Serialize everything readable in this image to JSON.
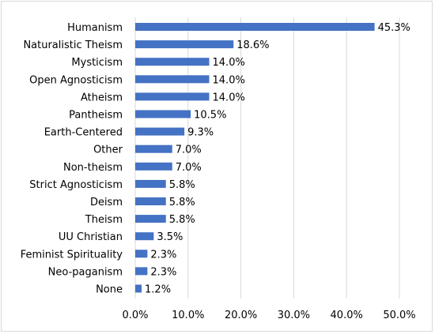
{
  "chart_data": {
    "type": "bar",
    "orientation": "horizontal",
    "categories": [
      "Humanism",
      "Naturalistic Theism",
      "Mysticism",
      "Open Agnosticism",
      "Atheism",
      "Pantheism",
      "Earth-Centered",
      "Other",
      "Non-theism",
      "Strict Agnosticism",
      "Deism",
      "Theism",
      "UU Christian",
      "Feminist Spirituality",
      "Neo-paganism",
      "None"
    ],
    "values": [
      45.3,
      18.6,
      14.0,
      14.0,
      14.0,
      10.5,
      9.3,
      7.0,
      7.0,
      5.8,
      5.8,
      5.8,
      3.5,
      2.3,
      2.3,
      1.2
    ],
    "value_labels": [
      "45.3%",
      "18.6%",
      "14.0%",
      "14.0%",
      "14.0%",
      "10.5%",
      "9.3%",
      "7.0%",
      "7.0%",
      "5.8%",
      "5.8%",
      "5.8%",
      "3.5%",
      "2.3%",
      "2.3%",
      "1.2%"
    ],
    "x_ticks": [
      "0.0%",
      "10.0%",
      "20.0%",
      "30.0%",
      "40.0%",
      "50.0%"
    ],
    "xlim": [
      0,
      50
    ],
    "title": "",
    "xlabel": "",
    "ylabel": "",
    "grid": "vertical",
    "legend": "none",
    "bar_color": "#4472c4",
    "grid_color": "#d9d9d9"
  }
}
